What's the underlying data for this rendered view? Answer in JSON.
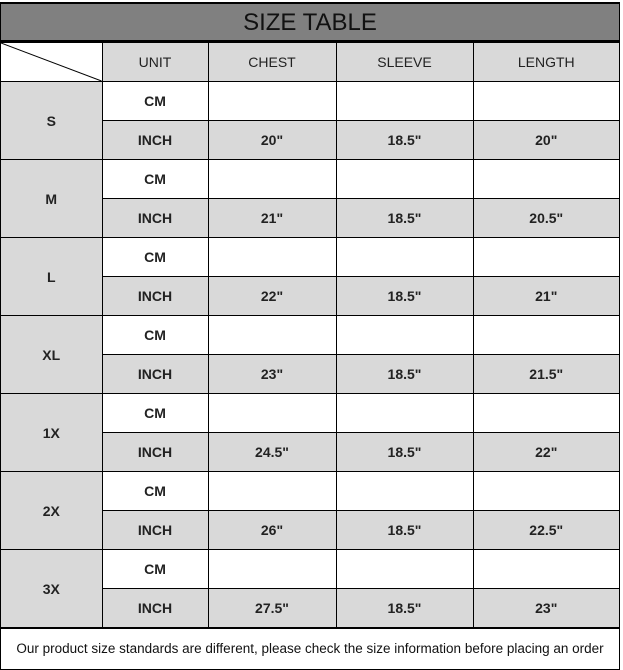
{
  "title": "SIZE TABLE",
  "headers": {
    "unit": "UNIT",
    "chest": "CHEST",
    "sleeve": "SLEEVE",
    "length": "LENGTH"
  },
  "rows": [
    {
      "size": "S",
      "cm_label": "CM",
      "inch_label": "INCH",
      "chest": "20\"",
      "sleeve": "18.5\"",
      "length": "20\""
    },
    {
      "size": "M",
      "cm_label": "CM",
      "inch_label": "INCH",
      "chest": "21\"",
      "sleeve": "18.5\"",
      "length": "20.5\""
    },
    {
      "size": "L",
      "cm_label": "CM",
      "inch_label": "INCH",
      "chest": "22\"",
      "sleeve": "18.5\"",
      "length": "21\""
    },
    {
      "size": "XL",
      "cm_label": "CM",
      "inch_label": "INCH",
      "chest": "23\"",
      "sleeve": "18.5\"",
      "length": "21.5\""
    },
    {
      "size": "1X",
      "cm_label": "CM",
      "inch_label": "INCH",
      "chest": "24.5\"",
      "sleeve": "18.5\"",
      "length": "22\""
    },
    {
      "size": "2X",
      "cm_label": "CM",
      "inch_label": "INCH",
      "chest": "26\"",
      "sleeve": "18.5\"",
      "length": "22.5\""
    },
    {
      "size": "3X",
      "cm_label": "CM",
      "inch_label": "INCH",
      "chest": "27.5\"",
      "sleeve": "18.5\"",
      "length": "23\""
    }
  ],
  "footer": "Our product size standards are different, please check the size information before placing an order"
}
